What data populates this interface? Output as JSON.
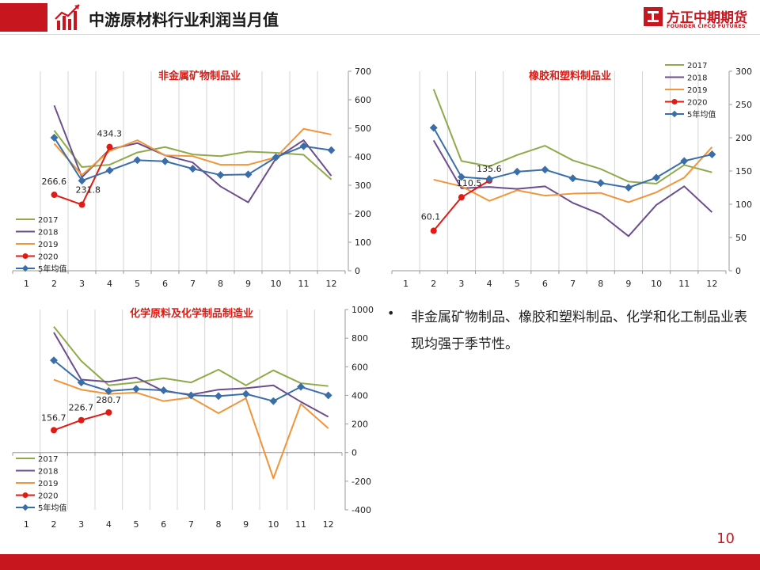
{
  "header": {
    "title": "中游原材料行业利润当月值"
  },
  "brand": {
    "name": "方正中期期货",
    "sub": "FOUNDER CIFCO FUTURES"
  },
  "bullet": {
    "text": "非金属矿物制品、橡胶和塑料制品、化学和化工制品业表现均强于季节性。"
  },
  "page_number": "10",
  "colors": {
    "2017": "#8faa4a",
    "2018": "#6b4e8e",
    "2019": "#f0953a",
    "2020": "#e01b14",
    "avg": "#3a6ea8",
    "accent": "#c8161e"
  },
  "chart_data": [
    {
      "type": "line",
      "title": "非金属矿物制品业",
      "categories": [
        "1",
        "2",
        "3",
        "4",
        "5",
        "6",
        "7",
        "8",
        "9",
        "10",
        "11",
        "12"
      ],
      "ylim": [
        0,
        700
      ],
      "yticks": [
        0,
        100,
        200,
        300,
        400,
        500,
        600,
        700
      ],
      "legend_position": "bottom-left",
      "series": [
        {
          "name": "2017",
          "key": "2017",
          "values": [
            null,
            492,
            364,
            372,
            415,
            434,
            408,
            402,
            418,
            414,
            407,
            320
          ]
        },
        {
          "name": "2018",
          "key": "2018",
          "values": [
            null,
            580,
            328,
            426,
            448,
            405,
            380,
            296,
            240,
            394,
            458,
            333
          ]
        },
        {
          "name": "2019",
          "key": "2019",
          "values": [
            null,
            446,
            336,
            420,
            458,
            405,
            402,
            372,
            372,
            398,
            498,
            478
          ]
        },
        {
          "name": "2020",
          "key": "2020",
          "values": [
            null,
            266.6,
            231.8,
            434.3,
            null,
            null,
            null,
            null,
            null,
            null,
            null,
            null
          ],
          "labels": [
            "266.6",
            "231.8",
            "434.3"
          ]
        },
        {
          "name": "5年均值",
          "key": "avg",
          "values": [
            null,
            467,
            316,
            352,
            388,
            384,
            358,
            336,
            338,
            398,
            437,
            423
          ]
        }
      ]
    },
    {
      "type": "line",
      "title": "橡胶和塑料制品业",
      "categories": [
        "1",
        "2",
        "3",
        "4",
        "5",
        "6",
        "7",
        "8",
        "9",
        "10",
        "11",
        "12"
      ],
      "ylim": [
        0,
        300
      ],
      "yticks": [
        0,
        50,
        100,
        150,
        200,
        250,
        300
      ],
      "legend_position": "top-right",
      "series": [
        {
          "name": "2017",
          "key": "2017",
          "values": [
            null,
            273,
            165,
            157,
            174,
            188,
            166,
            153,
            134,
            131,
            159,
            148
          ]
        },
        {
          "name": "2018",
          "key": "2018",
          "values": [
            null,
            196,
            124,
            126,
            123,
            127,
            102,
            85,
            52,
            99,
            127,
            88
          ]
        },
        {
          "name": "2019",
          "key": "2019",
          "values": [
            null,
            137,
            127,
            105,
            121,
            113,
            116,
            117,
            103,
            118,
            140,
            186
          ]
        },
        {
          "name": "2020",
          "key": "2020",
          "values": [
            null,
            60.1,
            110.5,
            135.6,
            null,
            null,
            null,
            null,
            null,
            null,
            null,
            null
          ],
          "labels": [
            "60.1",
            "110.5",
            "135.6"
          ]
        },
        {
          "name": "5年均值",
          "key": "avg",
          "values": [
            null,
            215,
            141,
            138,
            149,
            152,
            139,
            132,
            125,
            140,
            165,
            175
          ]
        }
      ]
    },
    {
      "type": "line",
      "title": "化学原料及化学制品制造业",
      "categories": [
        "1",
        "2",
        "3",
        "4",
        "5",
        "6",
        "7",
        "8",
        "9",
        "10",
        "11",
        "12"
      ],
      "ylim": [
        -400,
        1000
      ],
      "yticks": [
        -400,
        -200,
        0,
        200,
        400,
        600,
        800,
        1000
      ],
      "legend_position": "bottom-left",
      "series": [
        {
          "name": "2017",
          "key": "2017",
          "values": [
            null,
            880,
            640,
            470,
            490,
            520,
            490,
            580,
            470,
            575,
            485,
            465
          ]
        },
        {
          "name": "2018",
          "key": "2018",
          "values": [
            null,
            840,
            510,
            495,
            525,
            430,
            405,
            440,
            450,
            470,
            355,
            250
          ]
        },
        {
          "name": "2019",
          "key": "2019",
          "values": [
            null,
            510,
            440,
            410,
            420,
            360,
            385,
            275,
            380,
            -180,
            340,
            170
          ]
        },
        {
          "name": "2020",
          "key": "2020",
          "values": [
            null,
            156.7,
            226.7,
            280.7,
            null,
            null,
            null,
            null,
            null,
            null,
            null,
            null
          ],
          "labels": [
            "156.7",
            "226.7",
            "280.7"
          ]
        },
        {
          "name": "5年均值",
          "key": "avg",
          "values": [
            null,
            645,
            490,
            430,
            445,
            435,
            400,
            395,
            410,
            360,
            460,
            400
          ]
        }
      ]
    }
  ]
}
